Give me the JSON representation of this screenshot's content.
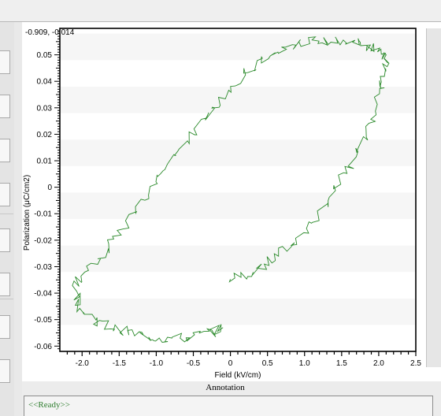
{
  "colors": {
    "trace": "#2b8a2b",
    "background": "#ececec",
    "status_text": "#2d7d2d"
  },
  "plot": {
    "readout": "-0.909, -0.014"
  },
  "chart_data": {
    "type": "line",
    "title": "",
    "xlabel": "Field (kV/cm)",
    "ylabel": "Polarization (μC/cm2)",
    "xlim": [
      -2.3,
      2.5
    ],
    "ylim": [
      -0.062,
      0.06
    ],
    "x_ticks": [
      -2.0,
      -1.5,
      -1.0,
      -0.5,
      0,
      0.5,
      1.0,
      1.5,
      2.0,
      2.5
    ],
    "x_tick_labels": [
      "-2.0",
      "-1.5",
      "-1.0",
      "-0.5",
      "0",
      "0.5",
      "1.0",
      "1.5",
      "2.0",
      "2.5"
    ],
    "y_ticks": [
      -0.06,
      -0.05,
      -0.04,
      -0.03,
      -0.02,
      -0.01,
      0,
      0.01,
      0.02,
      0.03,
      0.04,
      0.05
    ],
    "y_tick_labels": [
      "-0.06",
      "-0.05",
      "-0.04",
      "-0.03",
      "-0.02",
      "-0.01",
      "0",
      "0.01",
      "0.02",
      "0.03",
      "0.04",
      "0.05"
    ],
    "grid": "horizontal bands",
    "series": [
      {
        "x": [
          0.0,
          0.3,
          0.6,
          0.9,
          1.2,
          1.45,
          1.7,
          1.9,
          2.05,
          2.1,
          2.05,
          1.9,
          1.7,
          1.4,
          1.1,
          0.8,
          0.5,
          0.2,
          -0.1,
          -0.4,
          -0.7,
          -1.0,
          -1.3,
          -1.6,
          -1.9,
          -2.1,
          -2.0,
          -1.8,
          -1.5,
          -1.2,
          -0.9,
          -0.6,
          -0.3,
          -0.1
        ],
        "y": [
          -0.035,
          -0.032,
          -0.027,
          -0.02,
          -0.01,
          0.0,
          0.012,
          0.025,
          0.037,
          0.045,
          0.05,
          0.053,
          0.055,
          0.056,
          0.055,
          0.053,
          0.049,
          0.043,
          0.034,
          0.024,
          0.013,
          0.002,
          -0.01,
          -0.021,
          -0.031,
          -0.038,
          -0.046,
          -0.051,
          -0.054,
          -0.056,
          -0.057,
          -0.057,
          -0.055,
          -0.053
        ]
      }
    ]
  },
  "annotation": {
    "title": "Annotation",
    "status": "<<Ready>>"
  }
}
